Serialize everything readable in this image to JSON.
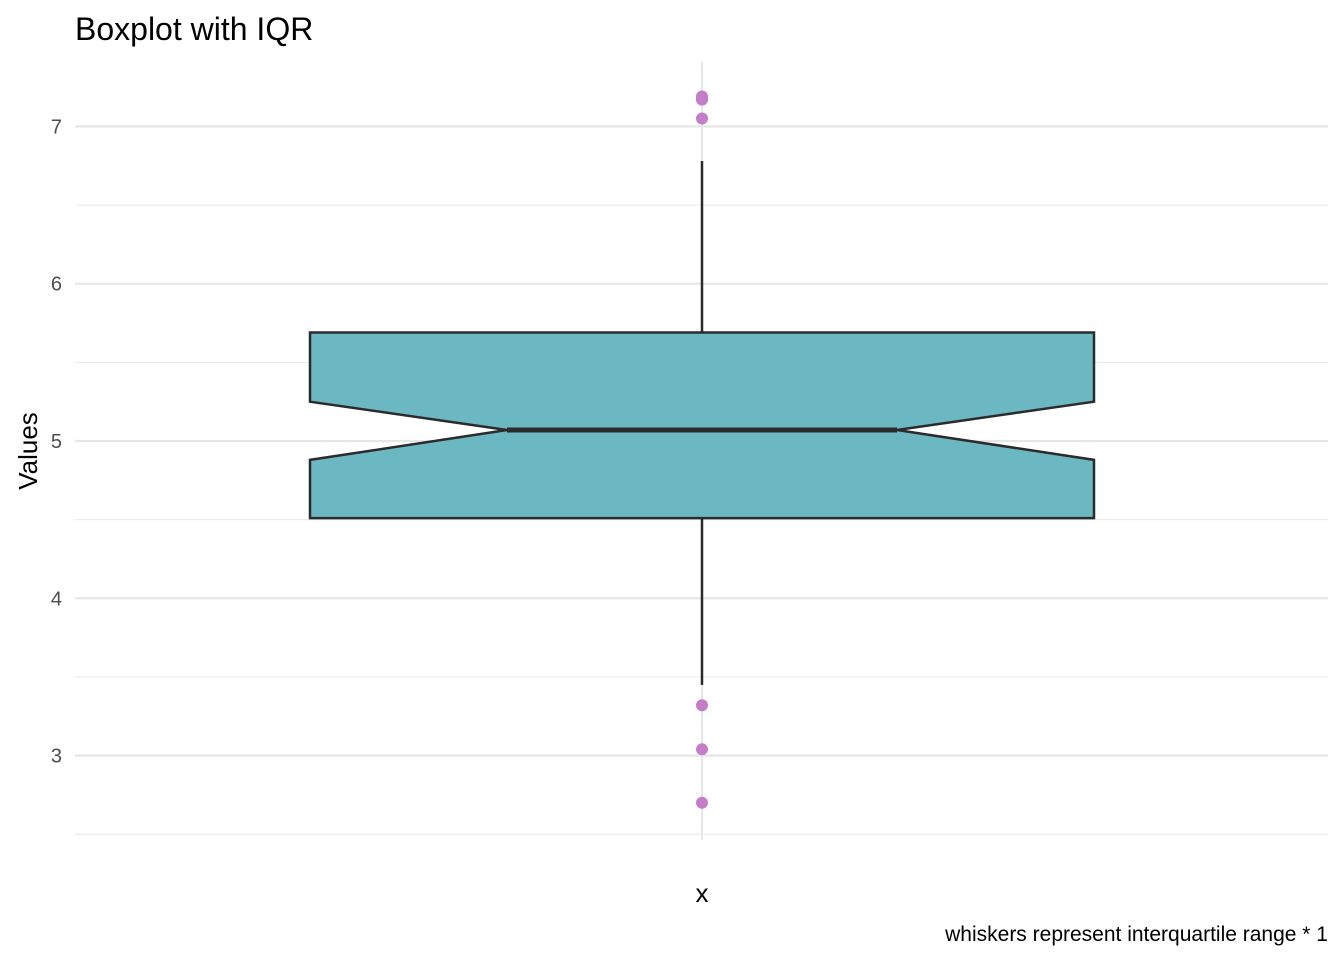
{
  "chart_data": {
    "type": "boxplot",
    "title": "Boxplot with IQR",
    "xlabel": "x",
    "ylabel": "Values",
    "caption": "whiskers represent interquartile range * 1",
    "ylim": [
      2.5,
      7.4
    ],
    "yticks": [
      3,
      4,
      5,
      6,
      7
    ],
    "y_minor_ticks": [
      2.5,
      3.5,
      4.5,
      5.5,
      6.5
    ],
    "grid": true,
    "colors": {
      "box_fill": "#6bb8c3",
      "box_stroke": "#2b2b2b",
      "outlier": "#c37dc9",
      "grid_major": "#e6e6e6",
      "grid_minor": "#ececec"
    },
    "box": {
      "q1": 4.51,
      "median": 5.07,
      "q3": 5.69,
      "notch_low": 4.88,
      "notch_high": 5.25,
      "whisker_low": 3.45,
      "whisker_high": 6.78
    },
    "outliers": [
      7.19,
      7.17,
      7.05,
      3.32,
      3.04,
      2.7
    ]
  }
}
